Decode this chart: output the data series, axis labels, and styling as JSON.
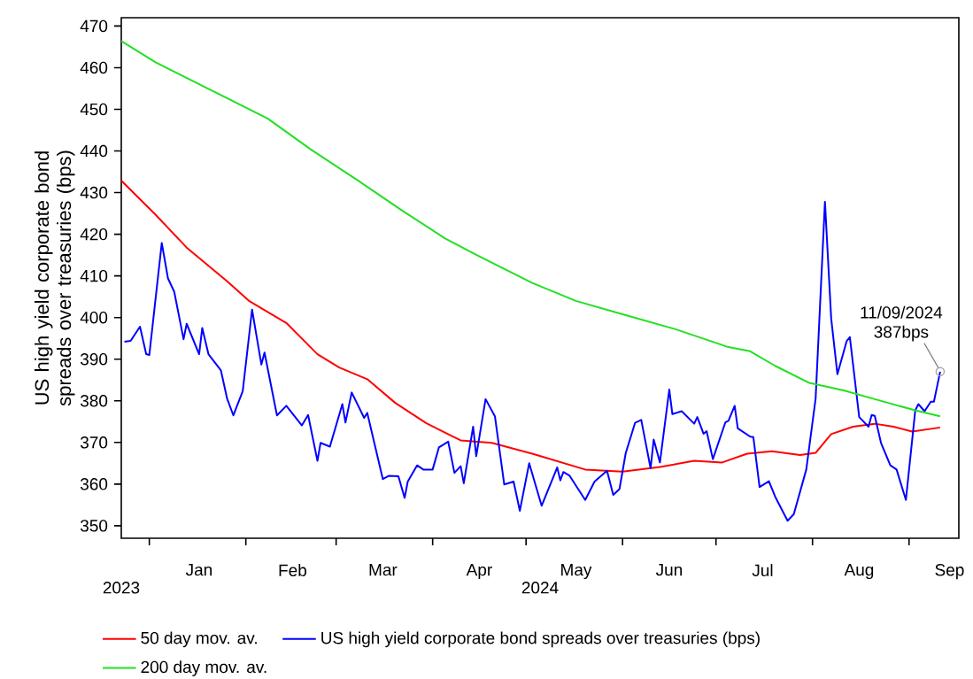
{
  "chart_data": {
    "type": "line",
    "ylabel": "US high yield corporate bond spreads over treasuries (bps)",
    "xlim": [
      "2023-12-23",
      "2024-09-17"
    ],
    "ylim": [
      347,
      472
    ],
    "yticks": [
      350,
      360,
      370,
      380,
      390,
      400,
      410,
      420,
      430,
      440,
      450,
      460,
      470
    ],
    "xticks": [
      {
        "value": "2024-01-01",
        "label": null
      },
      {
        "value": "2024-01-17",
        "label": "Jan"
      },
      {
        "value": "2024-02-01",
        "label": null
      },
      {
        "value": "2024-02-16",
        "label": "Feb"
      },
      {
        "value": "2024-03-01",
        "label": null
      },
      {
        "value": "2024-03-16",
        "label": "Mar"
      },
      {
        "value": "2024-04-01",
        "label": null
      },
      {
        "value": "2024-04-16",
        "label": "Apr"
      },
      {
        "value": "2024-05-01",
        "label": null
      },
      {
        "value": "2024-05-17",
        "label": "May"
      },
      {
        "value": "2024-06-01",
        "label": null
      },
      {
        "value": "2024-06-16",
        "label": "Jun"
      },
      {
        "value": "2024-07-01",
        "label": null
      },
      {
        "value": "2024-07-16",
        "label": "Jul"
      },
      {
        "value": "2024-08-01",
        "label": null
      },
      {
        "value": "2024-08-16",
        "label": "Aug"
      },
      {
        "value": "2024-09-01",
        "label": null
      },
      {
        "value": "2024-09-14",
        "label": "Sep"
      }
    ],
    "marker": "none",
    "line_style": "solid",
    "legend": "bottom",
    "grid": false,
    "annotations": [
      "2023",
      "2024",
      {
        "text": "11/09/2024 387bps",
        "x": "2024-09-11",
        "y": 387
      }
    ],
    "series": [
      {
        "name": "50 day mov. av.",
        "color": "#ff0000",
        "x": [
          "2023-12-23",
          "2024-01-03",
          "2024-01-13",
          "2024-01-26",
          "2024-02-02",
          "2024-02-14",
          "2024-02-24",
          "2024-03-02",
          "2024-03-11",
          "2024-03-20",
          "2024-03-30",
          "2024-04-10",
          "2024-04-20",
          "2024-05-03",
          "2024-05-20",
          "2024-06-01",
          "2024-06-13",
          "2024-06-24",
          "2024-07-03",
          "2024-07-11",
          "2024-07-19",
          "2024-07-28",
          "2024-08-02",
          "2024-08-07",
          "2024-08-14",
          "2024-08-21",
          "2024-08-27",
          "2024-09-02",
          "2024-09-11"
        ],
        "values": [
          432.9,
          424.7,
          416.8,
          408.7,
          404,
          398.7,
          391.2,
          388,
          385.2,
          379.5,
          374.6,
          370.5,
          369.9,
          367.3,
          363.5,
          363,
          364.1,
          365.6,
          365.2,
          367.3,
          367.9,
          367,
          367.5,
          372,
          373.8,
          374.5,
          373.8,
          372.6,
          373.6
        ]
      },
      {
        "name": "US high yield corporate bond spreads over treasuries (bps)",
        "color": "#0000ff",
        "x": [
          "2023-12-24",
          "2023-12-26",
          "2023-12-29",
          "2023-12-31",
          "2024-01-01",
          "2024-01-05",
          "2024-01-07",
          "2024-01-09",
          "2024-01-12",
          "2024-01-13",
          "2024-01-17",
          "2024-01-18",
          "2024-01-20",
          "2024-01-24",
          "2024-01-26",
          "2024-01-28",
          "2024-01-31",
          "2024-02-03",
          "2024-02-06",
          "2024-02-07",
          "2024-02-11",
          "2024-02-14",
          "2024-02-19",
          "2024-02-21",
          "2024-02-24",
          "2024-02-25",
          "2024-02-28",
          "2024-03-03",
          "2024-03-04",
          "2024-03-06",
          "2024-03-10",
          "2024-03-11",
          "2024-03-16",
          "2024-03-18",
          "2024-03-21",
          "2024-03-23",
          "2024-03-24",
          "2024-03-27",
          "2024-03-29",
          "2024-04-01",
          "2024-04-03",
          "2024-04-06",
          "2024-04-08",
          "2024-04-10",
          "2024-04-11",
          "2024-04-14",
          "2024-04-15",
          "2024-04-18",
          "2024-04-21",
          "2024-04-24",
          "2024-04-27",
          "2024-04-29",
          "2024-05-02",
          "2024-05-06",
          "2024-05-11",
          "2024-05-12",
          "2024-05-13",
          "2024-05-15",
          "2024-05-20",
          "2024-05-23",
          "2024-05-27",
          "2024-05-29",
          "2024-05-31",
          "2024-06-02",
          "2024-06-05",
          "2024-06-07",
          "2024-06-10",
          "2024-06-11",
          "2024-06-13",
          "2024-06-16",
          "2024-06-17",
          "2024-06-20",
          "2024-06-24",
          "2024-06-25",
          "2024-06-27",
          "2024-06-28",
          "2024-06-30",
          "2024-07-04",
          "2024-07-05",
          "2024-07-07",
          "2024-07-08",
          "2024-07-12",
          "2024-07-13",
          "2024-07-15",
          "2024-07-18",
          "2024-07-20",
          "2024-07-24",
          "2024-07-26",
          "2024-07-30",
          "2024-08-02",
          "2024-08-05",
          "2024-08-07",
          "2024-08-09",
          "2024-08-12",
          "2024-08-13",
          "2024-08-16",
          "2024-08-19",
          "2024-08-20",
          "2024-08-21",
          "2024-08-23",
          "2024-08-26",
          "2024-08-28",
          "2024-08-31",
          "2024-09-03",
          "2024-09-04",
          "2024-09-06",
          "2024-09-08",
          "2024-09-09",
          "2024-09-11"
        ],
        "values": [
          394.2,
          394.4,
          397.8,
          391.2,
          391,
          417.9,
          409.4,
          406.2,
          394.8,
          398.5,
          391.2,
          397.5,
          391.2,
          387.3,
          380.5,
          376.5,
          382.3,
          401.9,
          388.7,
          391.6,
          376.5,
          378.8,
          374.1,
          376.6,
          365.6,
          369.9,
          369,
          379.2,
          374.8,
          382,
          375.9,
          377.1,
          361.2,
          362,
          361.9,
          356.7,
          360.6,
          364.5,
          363.5,
          363.5,
          368.8,
          370.2,
          362.7,
          364.3,
          360.2,
          373.8,
          366.7,
          380.4,
          376.3,
          359.9,
          360.6,
          353.6,
          365,
          354.8,
          364,
          360.9,
          362.9,
          362,
          356.2,
          360.6,
          363.2,
          357.4,
          358.8,
          367.4,
          374.7,
          375.4,
          363.8,
          370.7,
          365.2,
          382.7,
          376.8,
          377.5,
          374.5,
          376.1,
          372.1,
          372.7,
          366,
          374.8,
          375.2,
          378.8,
          373.4,
          371.4,
          371.3,
          359.3,
          360.7,
          357,
          351.2,
          352.8,
          363.5,
          380.5,
          427.8,
          399.8,
          386.4,
          394.4,
          395.3,
          376.1,
          373.8,
          376.6,
          376.4,
          369.9,
          364.5,
          363.5,
          356.2,
          377.7,
          379.2,
          377.5,
          379.8,
          379.8,
          387
        ]
      },
      {
        "name": "200 day mov. av.",
        "color": "#22e022",
        "x": [
          "2023-12-23",
          "2024-01-03",
          "2024-01-19",
          "2024-02-08",
          "2024-02-22",
          "2024-03-08",
          "2024-03-22",
          "2024-04-05",
          "2024-04-16",
          "2024-05-03",
          "2024-05-17",
          "2024-06-01",
          "2024-06-18",
          "2024-07-05",
          "2024-07-12",
          "2024-07-20",
          "2024-07-31",
          "2024-08-11",
          "2024-08-21",
          "2024-09-03",
          "2024-09-11"
        ],
        "values": [
          466.4,
          461.3,
          455.3,
          447.8,
          440.3,
          432.9,
          425.8,
          419,
          414.7,
          408.3,
          404,
          400.8,
          397.2,
          392.9,
          391.9,
          388.4,
          384.3,
          382.5,
          380.4,
          377.7,
          376.3
        ]
      }
    ]
  }
}
